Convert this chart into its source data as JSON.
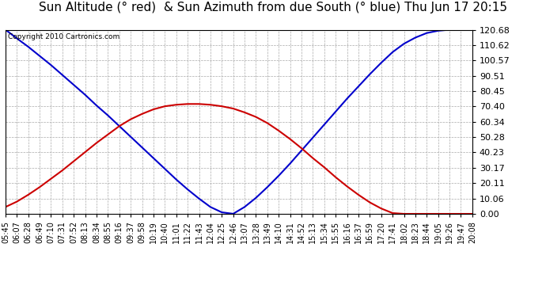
{
  "title": "Sun Altitude (° red)  & Sun Azimuth from due South (° blue) Thu Jun 17 20:15",
  "copyright_text": "Copyright 2010 Cartronics.com",
  "ymin": 0.0,
  "ymax": 120.68,
  "yticks": [
    0.0,
    10.06,
    20.11,
    30.17,
    40.23,
    50.28,
    60.34,
    70.4,
    80.45,
    90.51,
    100.57,
    110.62,
    120.68
  ],
  "background_color": "#ffffff",
  "grid_color": "#aaaaaa",
  "altitude_color": "#cc0000",
  "azimuth_color": "#0000cc",
  "times": [
    "05:45",
    "06:07",
    "06:28",
    "06:49",
    "07:10",
    "07:31",
    "07:52",
    "08:13",
    "08:34",
    "08:55",
    "09:16",
    "09:37",
    "09:58",
    "10:19",
    "10:40",
    "11:01",
    "11:22",
    "11:43",
    "12:04",
    "12:25",
    "12:46",
    "13:07",
    "13:28",
    "13:49",
    "14:10",
    "14:31",
    "14:52",
    "15:13",
    "15:34",
    "15:55",
    "16:16",
    "16:37",
    "16:59",
    "17:20",
    "17:41",
    "18:02",
    "18:23",
    "18:44",
    "19:05",
    "19:26",
    "19:47",
    "20:08"
  ],
  "altitude_values": [
    4.5,
    8.0,
    12.5,
    17.5,
    23.0,
    28.5,
    34.5,
    40.5,
    46.5,
    52.0,
    57.5,
    62.0,
    65.5,
    68.5,
    70.5,
    71.5,
    72.0,
    72.0,
    71.5,
    70.5,
    69.0,
    66.5,
    63.5,
    59.5,
    54.5,
    49.0,
    43.0,
    36.5,
    30.5,
    24.0,
    18.0,
    12.5,
    7.5,
    3.5,
    0.5,
    0.0,
    0.0,
    0.0,
    0.0,
    0.0,
    0.0,
    0.0
  ],
  "azimuth_values": [
    120.68,
    115.0,
    109.5,
    103.5,
    97.5,
    91.0,
    84.5,
    78.0,
    71.0,
    64.5,
    57.5,
    50.5,
    43.5,
    36.5,
    29.5,
    22.5,
    16.0,
    10.0,
    4.5,
    1.0,
    0.05,
    4.5,
    10.5,
    17.5,
    25.0,
    33.0,
    41.5,
    50.0,
    58.5,
    67.0,
    75.5,
    83.5,
    91.5,
    99.0,
    106.0,
    111.5,
    115.5,
    118.5,
    120.0,
    120.68,
    120.68,
    120.68
  ],
  "title_fontsize": 11,
  "tick_fontsize": 7,
  "linewidth": 1.5,
  "figwidth": 6.9,
  "figheight": 3.75,
  "dpi": 100
}
